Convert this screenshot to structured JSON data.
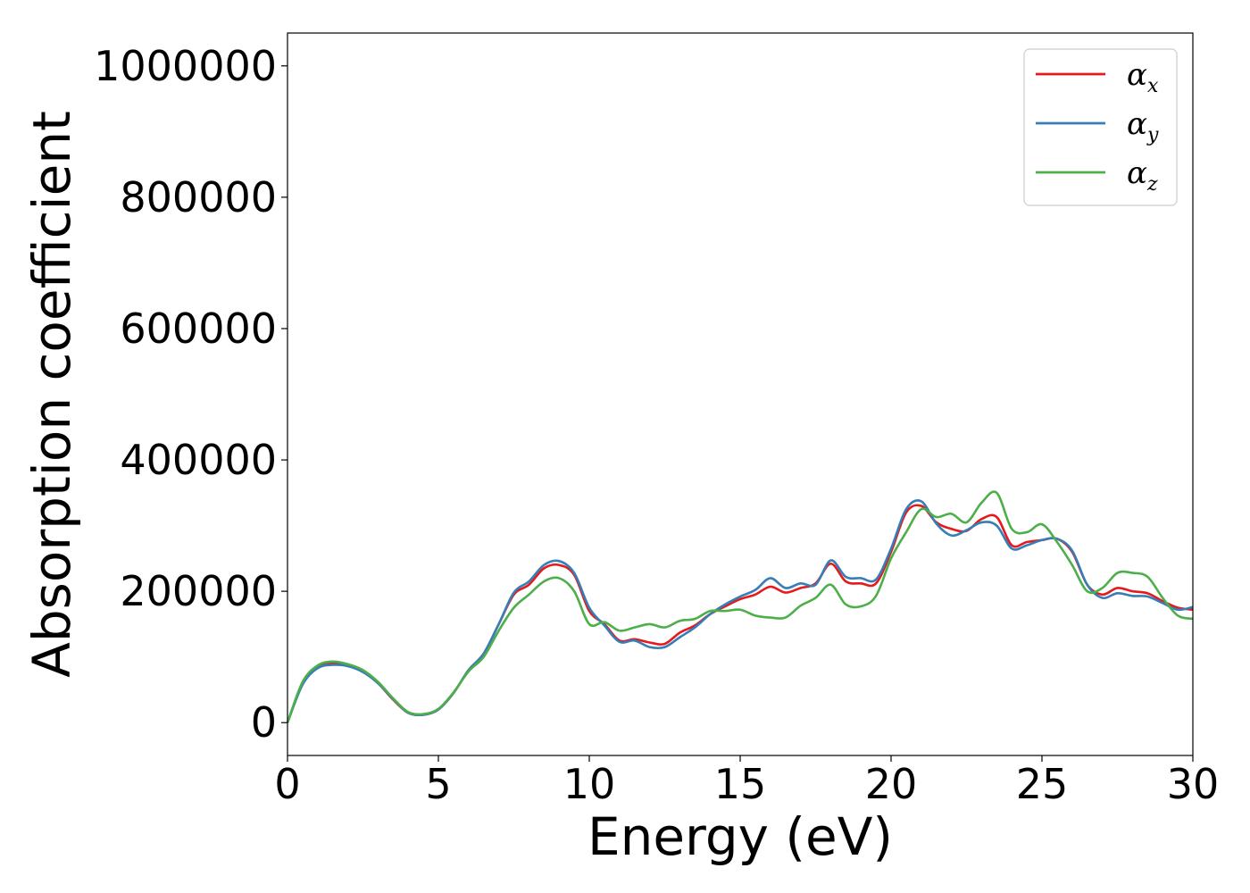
{
  "chart_data": {
    "type": "line",
    "xlabel": "Energy (eV)",
    "ylabel": "Absorption coefficient",
    "xlim": [
      0,
      30
    ],
    "ylim": [
      -50000,
      1050000
    ],
    "xticks": [
      0,
      5,
      10,
      15,
      20,
      25,
      30
    ],
    "xtick_labels": [
      "0",
      "5",
      "10",
      "15",
      "20",
      "25",
      "30"
    ],
    "yticks": [
      0,
      200000,
      400000,
      600000,
      800000,
      1000000
    ],
    "ytick_labels": [
      "0",
      "200000",
      "400000",
      "600000",
      "800000",
      "1000000"
    ],
    "grid": false,
    "legend_position": "top-right",
    "x": [
      0,
      0.5,
      1,
      1.5,
      2,
      2.5,
      3,
      3.5,
      4,
      4.5,
      5,
      5.5,
      6,
      6.5,
      7,
      7.5,
      8,
      8.5,
      9,
      9.5,
      10,
      10.5,
      11,
      11.5,
      12,
      12.5,
      13,
      13.5,
      14,
      14.5,
      15,
      15.5,
      16,
      16.5,
      17,
      17.5,
      18,
      18.5,
      19,
      19.5,
      20,
      20.5,
      21,
      21.5,
      22,
      22.5,
      23,
      23.5,
      24,
      24.5,
      25,
      25.5,
      26,
      26.5,
      27,
      27.5,
      28,
      28.5,
      29,
      29.5,
      30
    ],
    "series": [
      {
        "name": "α",
        "subscript": "x",
        "color": "#e41a1c",
        "values": [
          0,
          60000,
          85000,
          90000,
          87000,
          78000,
          60000,
          35000,
          15000,
          12000,
          20000,
          45000,
          80000,
          105000,
          150000,
          195000,
          210000,
          235000,
          240000,
          225000,
          170000,
          150000,
          125000,
          127000,
          122000,
          120000,
          137000,
          148000,
          165000,
          177000,
          188000,
          195000,
          207000,
          198000,
          205000,
          212000,
          242000,
          215000,
          212000,
          212000,
          260000,
          320000,
          330000,
          305000,
          295000,
          292000,
          310000,
          313000,
          270000,
          275000,
          278000,
          280000,
          260000,
          210000,
          195000,
          205000,
          200000,
          197000,
          185000,
          175000,
          172000
        ]
      },
      {
        "name": "α",
        "subscript": "y",
        "color": "#377eb8",
        "values": [
          0,
          58000,
          83000,
          88000,
          86000,
          77000,
          60000,
          36000,
          15000,
          12000,
          20000,
          45000,
          80000,
          105000,
          150000,
          198000,
          215000,
          240000,
          246000,
          228000,
          175000,
          148000,
          123000,
          125000,
          115000,
          115000,
          130000,
          145000,
          165000,
          180000,
          192000,
          202000,
          220000,
          205000,
          212000,
          210000,
          247000,
          222000,
          220000,
          218000,
          265000,
          325000,
          337000,
          303000,
          285000,
          293000,
          305000,
          300000,
          265000,
          270000,
          278000,
          280000,
          262000,
          210000,
          190000,
          197000,
          193000,
          192000,
          182000,
          172000,
          176000
        ]
      },
      {
        "name": "α",
        "subscript": "z",
        "color": "#4daf4a",
        "values": [
          0,
          62000,
          87000,
          93000,
          89000,
          80000,
          62000,
          37000,
          16000,
          13000,
          21000,
          46000,
          78000,
          100000,
          140000,
          175000,
          195000,
          215000,
          220000,
          200000,
          150000,
          153000,
          140000,
          145000,
          150000,
          145000,
          155000,
          158000,
          170000,
          170000,
          172000,
          163000,
          160000,
          160000,
          178000,
          190000,
          210000,
          180000,
          177000,
          193000,
          250000,
          290000,
          325000,
          313000,
          318000,
          305000,
          335000,
          350000,
          295000,
          290000,
          302000,
          275000,
          240000,
          200000,
          205000,
          228000,
          228000,
          222000,
          190000,
          163000,
          158000
        ]
      }
    ]
  }
}
